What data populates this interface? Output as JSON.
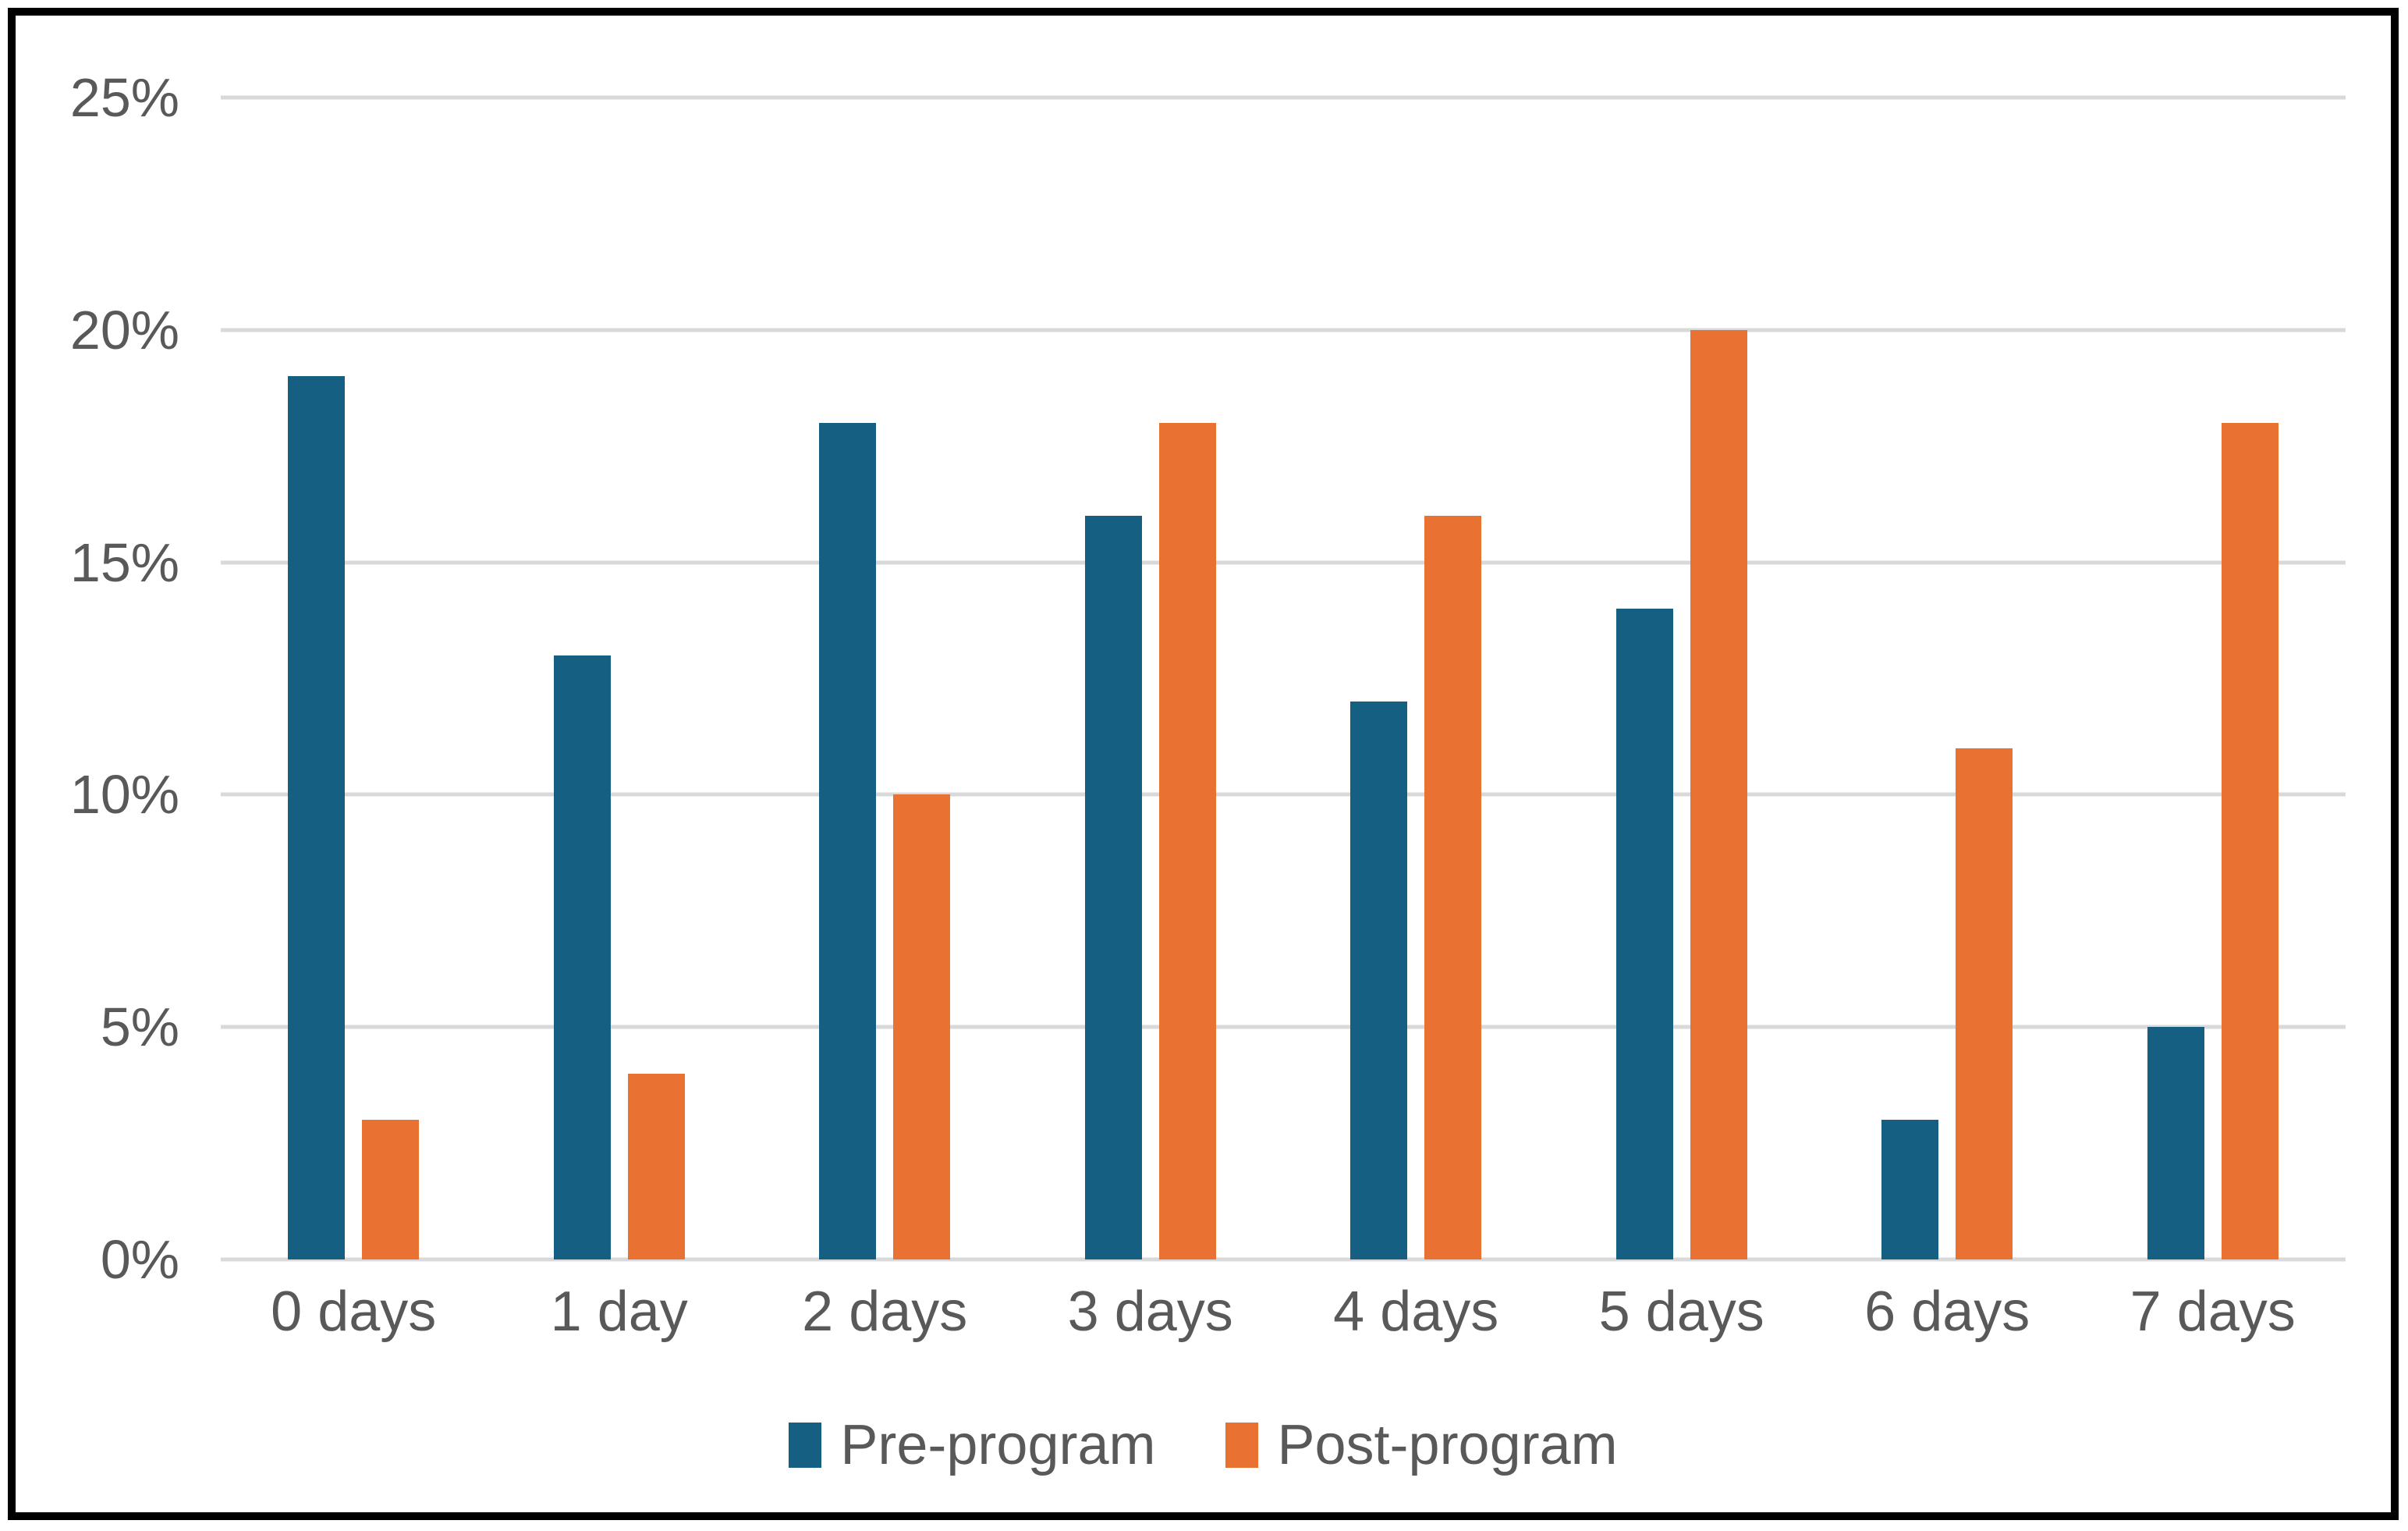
{
  "chart_data": {
    "type": "bar",
    "title": "",
    "xlabel": "",
    "ylabel": "",
    "categories": [
      "0 days",
      "1 day",
      "2 days",
      "3 days",
      "4 days",
      "5 days",
      "6 days",
      "7 days"
    ],
    "series": [
      {
        "name": "Pre-program",
        "color": "#156082",
        "values": [
          19,
          13,
          18,
          16,
          12,
          14,
          3,
          5
        ]
      },
      {
        "name": "Post-program",
        "color": "#E97132",
        "values": [
          3,
          4,
          10,
          18,
          16,
          20,
          11,
          18
        ]
      }
    ],
    "ylim": [
      0,
      25
    ],
    "y_tick_step": 5,
    "y_tick_labels": [
      "0%",
      "5%",
      "10%",
      "15%",
      "20%",
      "25%"
    ],
    "grid": "horizontal",
    "legend_position": "bottom-center",
    "value_format": "percent"
  },
  "style": {
    "background": "#FFFFFF",
    "frame_border_color": "#000000",
    "gridline_color": "#D9D9D9",
    "axis_text_color": "#595959"
  }
}
